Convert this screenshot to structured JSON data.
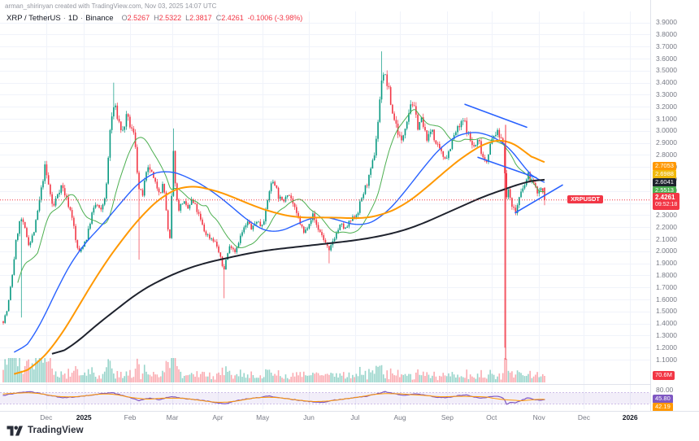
{
  "attribution": "arman_shirinyan created with TradingView.com, Nov 03, 2025 14:07 UTC",
  "legend": {
    "symbol": "XRP / TetherUS",
    "sep": "·",
    "timeframe": "1D",
    "exchange": "Binance",
    "o_label": "O",
    "o": "2.5267",
    "h_label": "H",
    "h": "2.5322",
    "l_label": "L",
    "l": "2.3817",
    "c_label": "C",
    "c": "2.4261",
    "change": "-0.1006 (-3.98%)"
  },
  "price_axis": {
    "ticks": [
      "3.9000",
      "3.8000",
      "3.7000",
      "3.6000",
      "3.5000",
      "3.4000",
      "3.3000",
      "3.2000",
      "3.1000",
      "3.0000",
      "2.9000",
      "2.8000",
      "2.7000",
      "2.6000",
      "2.5000",
      "2.4000",
      "2.3000",
      "2.2000",
      "2.1000",
      "2.0000",
      "1.9000",
      "1.8000",
      "1.7000",
      "1.6000",
      "1.5000",
      "1.4000",
      "1.3000",
      "1.2000",
      "1.1000"
    ],
    "badges": [
      {
        "label": "2.7053",
        "price": 2.7053,
        "color": "#ff9800"
      },
      {
        "label": "2.6988",
        "price": 2.6988,
        "color": "#f0b90b"
      },
      {
        "label": "2.6041",
        "price": 2.6041,
        "color": "#1e222d"
      },
      {
        "label": "2.5513",
        "price": 2.5513,
        "color": "#4caf50"
      }
    ],
    "last_price_badge": {
      "symbol": "XRPUSDT",
      "label": "2.4261",
      "countdown": "09:52:18",
      "color": "#f23645",
      "price": 2.4261
    },
    "volume_badge": {
      "label": "70.6M",
      "color": "#f23645"
    }
  },
  "indicator": {
    "name": "RSI",
    "ticks": [
      {
        "label": "80.00",
        "value": 80
      }
    ],
    "badges": [
      {
        "label": "45.80",
        "value": 45.8,
        "color": "#7e57c2"
      },
      {
        "label": "42.19",
        "value": 42.19,
        "color": "#ff9800"
      }
    ],
    "band": {
      "upper": 70,
      "lower": 30
    }
  },
  "time_axis": {
    "labels": [
      {
        "text": "Dec",
        "x": 0.071
      },
      {
        "text": "2025",
        "x": 0.129,
        "year": true
      },
      {
        "text": "Feb",
        "x": 0.2
      },
      {
        "text": "Mar",
        "x": 0.265
      },
      {
        "text": "Apr",
        "x": 0.335
      },
      {
        "text": "May",
        "x": 0.404
      },
      {
        "text": "Jun",
        "x": 0.475
      },
      {
        "text": "Jul",
        "x": 0.546
      },
      {
        "text": "Aug",
        "x": 0.615
      },
      {
        "text": "Sep",
        "x": 0.688
      },
      {
        "text": "Oct",
        "x": 0.756
      },
      {
        "text": "Nov",
        "x": 0.829
      },
      {
        "text": "Dec",
        "x": 0.898
      },
      {
        "text": "2026",
        "x": 0.969,
        "year": true
      }
    ]
  },
  "logo": {
    "text": "TradingView"
  },
  "chart_data": {
    "type": "candlestick",
    "title": "XRP / TetherUS · 1D · Binance",
    "symbol": "XRPUSDT",
    "interval": "1D",
    "exchange": "Binance",
    "ohlc_last": {
      "open": 2.5267,
      "high": 2.5322,
      "low": 2.3817,
      "close": 2.4261,
      "change": -0.1006,
      "change_pct": -3.98
    },
    "y_range": {
      "min": 1.08,
      "max": 3.97
    },
    "n_candles": 300,
    "seed": 7,
    "close_anchors": [
      [
        0.0,
        1.42
      ],
      [
        0.008,
        1.52
      ],
      [
        0.016,
        1.78
      ],
      [
        0.024,
        2.1
      ],
      [
        0.032,
        2.28
      ],
      [
        0.04,
        2.18
      ],
      [
        0.048,
        2.05
      ],
      [
        0.058,
        2.18
      ],
      [
        0.068,
        2.45
      ],
      [
        0.077,
        2.7
      ],
      [
        0.085,
        2.52
      ],
      [
        0.092,
        2.35
      ],
      [
        0.1,
        2.48
      ],
      [
        0.108,
        2.55
      ],
      [
        0.118,
        2.42
      ],
      [
        0.128,
        2.28
      ],
      [
        0.134,
        2.08
      ],
      [
        0.14,
        1.98
      ],
      [
        0.148,
        2.06
      ],
      [
        0.155,
        2.12
      ],
      [
        0.163,
        2.3
      ],
      [
        0.172,
        2.4
      ],
      [
        0.18,
        2.32
      ],
      [
        0.19,
        2.5
      ],
      [
        0.198,
        3.05
      ],
      [
        0.205,
        3.22
      ],
      [
        0.212,
        3.1
      ],
      [
        0.22,
        2.98
      ],
      [
        0.228,
        3.12
      ],
      [
        0.236,
        3.02
      ],
      [
        0.243,
        2.95
      ],
      [
        0.25,
        2.52
      ],
      [
        0.257,
        2.46
      ],
      [
        0.263,
        2.62
      ],
      [
        0.27,
        2.7
      ],
      [
        0.28,
        2.56
      ],
      [
        0.29,
        2.5
      ],
      [
        0.296,
        2.56
      ],
      [
        0.302,
        2.3
      ],
      [
        0.307,
        2.02
      ],
      [
        0.312,
        2.55
      ],
      [
        0.315,
        2.88
      ],
      [
        0.319,
        2.45
      ],
      [
        0.325,
        2.35
      ],
      [
        0.332,
        2.42
      ],
      [
        0.34,
        2.34
      ],
      [
        0.348,
        2.42
      ],
      [
        0.356,
        2.36
      ],
      [
        0.364,
        2.26
      ],
      [
        0.372,
        2.16
      ],
      [
        0.38,
        2.12
      ],
      [
        0.388,
        2.1
      ],
      [
        0.395,
        2.04
      ],
      [
        0.401,
        1.94
      ],
      [
        0.407,
        1.84
      ],
      [
        0.413,
        1.96
      ],
      [
        0.42,
        2.06
      ],
      [
        0.428,
        2.0
      ],
      [
        0.436,
        2.1
      ],
      [
        0.444,
        2.18
      ],
      [
        0.452,
        2.24
      ],
      [
        0.46,
        2.18
      ],
      [
        0.468,
        2.26
      ],
      [
        0.476,
        2.21
      ],
      [
        0.484,
        2.3
      ],
      [
        0.492,
        2.52
      ],
      [
        0.5,
        2.6
      ],
      [
        0.508,
        2.46
      ],
      [
        0.516,
        2.4
      ],
      [
        0.524,
        2.5
      ],
      [
        0.532,
        2.44
      ],
      [
        0.54,
        2.32
      ],
      [
        0.548,
        2.24
      ],
      [
        0.556,
        2.14
      ],
      [
        0.564,
        2.24
      ],
      [
        0.572,
        2.3
      ],
      [
        0.58,
        2.2
      ],
      [
        0.588,
        2.14
      ],
      [
        0.596,
        2.06
      ],
      [
        0.602,
        1.99
      ],
      [
        0.608,
        2.08
      ],
      [
        0.616,
        2.16
      ],
      [
        0.624,
        2.22
      ],
      [
        0.632,
        2.18
      ],
      [
        0.64,
        2.24
      ],
      [
        0.648,
        2.28
      ],
      [
        0.655,
        2.33
      ],
      [
        0.662,
        2.44
      ],
      [
        0.67,
        2.54
      ],
      [
        0.678,
        2.64
      ],
      [
        0.686,
        2.82
      ],
      [
        0.694,
        3.15
      ],
      [
        0.7,
        3.5
      ],
      [
        0.706,
        3.44
      ],
      [
        0.712,
        3.34
      ],
      [
        0.718,
        3.16
      ],
      [
        0.724,
        3.08
      ],
      [
        0.73,
        2.98
      ],
      [
        0.736,
        2.9
      ],
      [
        0.742,
        3.04
      ],
      [
        0.748,
        3.14
      ],
      [
        0.754,
        3.26
      ],
      [
        0.76,
        3.16
      ],
      [
        0.766,
        3.04
      ],
      [
        0.772,
        3.1
      ],
      [
        0.778,
        2.99
      ],
      [
        0.785,
        2.93
      ],
      [
        0.792,
        3.03
      ],
      [
        0.798,
        2.9
      ],
      [
        0.805,
        2.84
      ],
      [
        0.812,
        2.79
      ],
      [
        0.82,
        2.79
      ],
      [
        0.828,
        2.9
      ],
      [
        0.836,
        2.99
      ],
      [
        0.844,
        3.04
      ],
      [
        0.851,
        3.09
      ],
      [
        0.858,
        2.99
      ],
      [
        0.864,
        2.9
      ],
      [
        0.871,
        2.86
      ],
      [
        0.878,
        2.93
      ],
      [
        0.885,
        2.8
      ],
      [
        0.892,
        2.74
      ],
      [
        0.898,
        2.86
      ],
      [
        0.904,
        2.93
      ],
      [
        0.91,
        2.99
      ],
      [
        0.916,
        2.96
      ],
      [
        0.925,
        2.9
      ],
      [
        0.928,
        2.42
      ],
      [
        0.934,
        2.5
      ],
      [
        0.94,
        2.39
      ],
      [
        0.946,
        2.31
      ],
      [
        0.952,
        2.43
      ],
      [
        0.958,
        2.49
      ],
      [
        0.964,
        2.56
      ],
      [
        0.97,
        2.63
      ],
      [
        0.976,
        2.59
      ],
      [
        0.982,
        2.53
      ],
      [
        0.988,
        2.49
      ],
      [
        0.994,
        2.53
      ],
      [
        1.0,
        2.4261
      ]
    ],
    "wick_events": [
      {
        "t": 0.034,
        "low": 1.45
      },
      {
        "t": 0.205,
        "high": 3.4
      },
      {
        "t": 0.252,
        "low": 1.93
      },
      {
        "t": 0.315,
        "high": 3.02
      },
      {
        "t": 0.407,
        "low": 1.61
      },
      {
        "t": 0.602,
        "low": 1.9
      },
      {
        "t": 0.7,
        "high": 3.66
      },
      {
        "t": 0.928,
        "low": 1.2
      }
    ],
    "moving_averages": [
      {
        "name": "MA-fast",
        "color": "#4caf50",
        "last": 2.5513,
        "computed": true,
        "width": 1
      },
      {
        "name": "MA-mid",
        "color": "#2962ff",
        "width": 1.4,
        "anchors": [
          [
            0.02,
            1.1
          ],
          [
            0.06,
            1.3
          ],
          [
            0.1,
            1.7
          ],
          [
            0.14,
            2.02
          ],
          [
            0.18,
            2.2
          ],
          [
            0.22,
            2.42
          ],
          [
            0.26,
            2.62
          ],
          [
            0.3,
            2.68
          ],
          [
            0.34,
            2.62
          ],
          [
            0.38,
            2.52
          ],
          [
            0.42,
            2.38
          ],
          [
            0.46,
            2.22
          ],
          [
            0.5,
            2.14
          ],
          [
            0.54,
            2.22
          ],
          [
            0.58,
            2.3
          ],
          [
            0.62,
            2.26
          ],
          [
            0.66,
            2.2
          ],
          [
            0.7,
            2.28
          ],
          [
            0.74,
            2.48
          ],
          [
            0.78,
            2.72
          ],
          [
            0.82,
            2.92
          ],
          [
            0.86,
            3.0
          ],
          [
            0.89,
            2.98
          ],
          [
            0.92,
            2.92
          ],
          [
            0.945,
            2.82
          ],
          [
            0.965,
            2.68
          ],
          [
            0.98,
            2.58
          ],
          [
            1.0,
            2.55
          ]
        ]
      },
      {
        "name": "MA-slow",
        "color": "#ff9800",
        "last": 2.7053,
        "width": 2,
        "anchors": [
          [
            0.02,
            0.95
          ],
          [
            0.06,
            1.05
          ],
          [
            0.1,
            1.25
          ],
          [
            0.14,
            1.55
          ],
          [
            0.18,
            1.85
          ],
          [
            0.22,
            2.1
          ],
          [
            0.26,
            2.32
          ],
          [
            0.3,
            2.48
          ],
          [
            0.34,
            2.55
          ],
          [
            0.38,
            2.52
          ],
          [
            0.42,
            2.46
          ],
          [
            0.46,
            2.38
          ],
          [
            0.5,
            2.32
          ],
          [
            0.54,
            2.28
          ],
          [
            0.58,
            2.28
          ],
          [
            0.62,
            2.28
          ],
          [
            0.66,
            2.27
          ],
          [
            0.7,
            2.3
          ],
          [
            0.74,
            2.38
          ],
          [
            0.78,
            2.52
          ],
          [
            0.82,
            2.68
          ],
          [
            0.86,
            2.82
          ],
          [
            0.9,
            2.92
          ],
          [
            0.93,
            2.93
          ],
          [
            0.96,
            2.85
          ],
          [
            0.98,
            2.76
          ],
          [
            1.0,
            2.7053
          ]
        ]
      },
      {
        "name": "MA-200",
        "color": "#1e222d",
        "last": 2.6041,
        "width": 2,
        "anchors": [
          [
            0.09,
            1.12
          ],
          [
            0.13,
            1.22
          ],
          [
            0.17,
            1.38
          ],
          [
            0.21,
            1.52
          ],
          [
            0.25,
            1.66
          ],
          [
            0.29,
            1.76
          ],
          [
            0.33,
            1.84
          ],
          [
            0.37,
            1.9
          ],
          [
            0.41,
            1.94
          ],
          [
            0.45,
            1.98
          ],
          [
            0.49,
            2.01
          ],
          [
            0.53,
            2.03
          ],
          [
            0.57,
            2.05
          ],
          [
            0.61,
            2.07
          ],
          [
            0.65,
            2.09
          ],
          [
            0.69,
            2.12
          ],
          [
            0.73,
            2.16
          ],
          [
            0.77,
            2.22
          ],
          [
            0.81,
            2.3
          ],
          [
            0.85,
            2.38
          ],
          [
            0.89,
            2.46
          ],
          [
            0.93,
            2.52
          ],
          [
            0.96,
            2.57
          ],
          [
            1.0,
            2.6041
          ]
        ]
      },
      {
        "name": "MA-yellow",
        "color": "#f0b90b",
        "last": 2.6988,
        "draw": false
      }
    ],
    "rsi": {
      "last": 45.8,
      "signal_last": 42.19,
      "anchors": [
        [
          0.0,
          60
        ],
        [
          0.03,
          70
        ],
        [
          0.05,
          74
        ],
        [
          0.08,
          62
        ],
        [
          0.11,
          52
        ],
        [
          0.14,
          56
        ],
        [
          0.17,
          63
        ],
        [
          0.2,
          70
        ],
        [
          0.225,
          58
        ],
        [
          0.25,
          42
        ],
        [
          0.27,
          50
        ],
        [
          0.29,
          45
        ],
        [
          0.31,
          57
        ],
        [
          0.33,
          50
        ],
        [
          0.35,
          46
        ],
        [
          0.37,
          42
        ],
        [
          0.39,
          36
        ],
        [
          0.41,
          30
        ],
        [
          0.43,
          41
        ],
        [
          0.45,
          48
        ],
        [
          0.47,
          52
        ],
        [
          0.49,
          58
        ],
        [
          0.51,
          52
        ],
        [
          0.53,
          47
        ],
        [
          0.55,
          42
        ],
        [
          0.57,
          38
        ],
        [
          0.59,
          36
        ],
        [
          0.61,
          43
        ],
        [
          0.63,
          48
        ],
        [
          0.65,
          52
        ],
        [
          0.67,
          57
        ],
        [
          0.69,
          66
        ],
        [
          0.705,
          73
        ],
        [
          0.72,
          67
        ],
        [
          0.74,
          60
        ],
        [
          0.76,
          66
        ],
        [
          0.78,
          61
        ],
        [
          0.8,
          54
        ],
        [
          0.82,
          52
        ],
        [
          0.84,
          59
        ],
        [
          0.855,
          62
        ],
        [
          0.87,
          54
        ],
        [
          0.885,
          50
        ],
        [
          0.9,
          56
        ],
        [
          0.915,
          57
        ],
        [
          0.925,
          50
        ],
        [
          0.93,
          27
        ],
        [
          0.938,
          37
        ],
        [
          0.945,
          33
        ],
        [
          0.952,
          38
        ],
        [
          0.96,
          45
        ],
        [
          0.968,
          51
        ],
        [
          0.975,
          49
        ],
        [
          0.982,
          46
        ],
        [
          0.988,
          43
        ],
        [
          0.994,
          44
        ],
        [
          1.0,
          45.8
        ]
      ]
    },
    "volume": {
      "last_label": "70.6M"
    },
    "trendlines": [
      {
        "t1": 0.853,
        "p1": 3.22,
        "t2": 0.967,
        "p2": 3.03
      },
      {
        "t1": 0.877,
        "p1": 2.78,
        "t2": 0.985,
        "p2": 2.61
      },
      {
        "t1": 0.946,
        "p1": 2.32,
        "t2": 1.033,
        "p2": 2.55
      }
    ],
    "vline": {
      "t": 0.928,
      "p1": 3.05,
      "p2": 1.1,
      "color": "#f23645"
    },
    "last_price_line": {
      "price": 2.4261,
      "color": "#f23645"
    },
    "colors": {
      "up": "#089981",
      "down": "#f23645",
      "grid": "#f0f3fa",
      "trendline": "#2962ff",
      "rsi": "#7e57c2",
      "rsi_signal": "#ff9800"
    }
  }
}
